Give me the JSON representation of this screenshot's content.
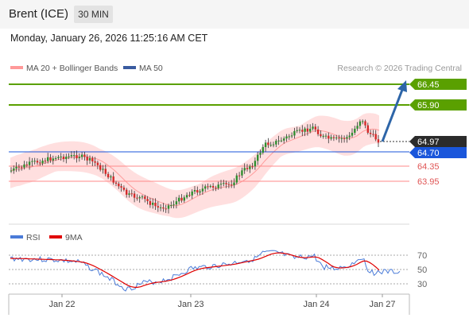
{
  "header": {
    "title": "Brent (ICE)",
    "timeframe": "30 MIN"
  },
  "datetime": "Monday, January 26, 2026 11:25:16 AM CET",
  "legend": {
    "bollinger": "MA 20 + Bollinger Bands",
    "ma50": "MA 50",
    "credit": "Research © 2026 Trading Central",
    "rsi": "RSI",
    "rsi_ma": "9MA"
  },
  "colors": {
    "resistance": "#5aa000",
    "support": "#ff8a8a",
    "price_line": "#1a56db",
    "current": "#2b2b2b",
    "bollinger": "#ffd2d2",
    "ma50": "#3a5ba0",
    "rsi": "#4a7bd8",
    "rsi_ma": "#e00000",
    "arrow": "#2d65a8"
  },
  "levels": [
    {
      "value": "66.45",
      "type": "resistance"
    },
    {
      "value": "65.90",
      "type": "resistance"
    },
    {
      "value": "64.97",
      "type": "current"
    },
    {
      "value": "64.70",
      "type": "pivot"
    },
    {
      "value": "64.35",
      "type": "support"
    },
    {
      "value": "63.95",
      "type": "support"
    }
  ],
  "rsi_axis": [
    "70",
    "50",
    "30"
  ],
  "x_labels": [
    "Jan 22",
    "Jan 23",
    "Jan 24",
    "Jan 27"
  ]
}
